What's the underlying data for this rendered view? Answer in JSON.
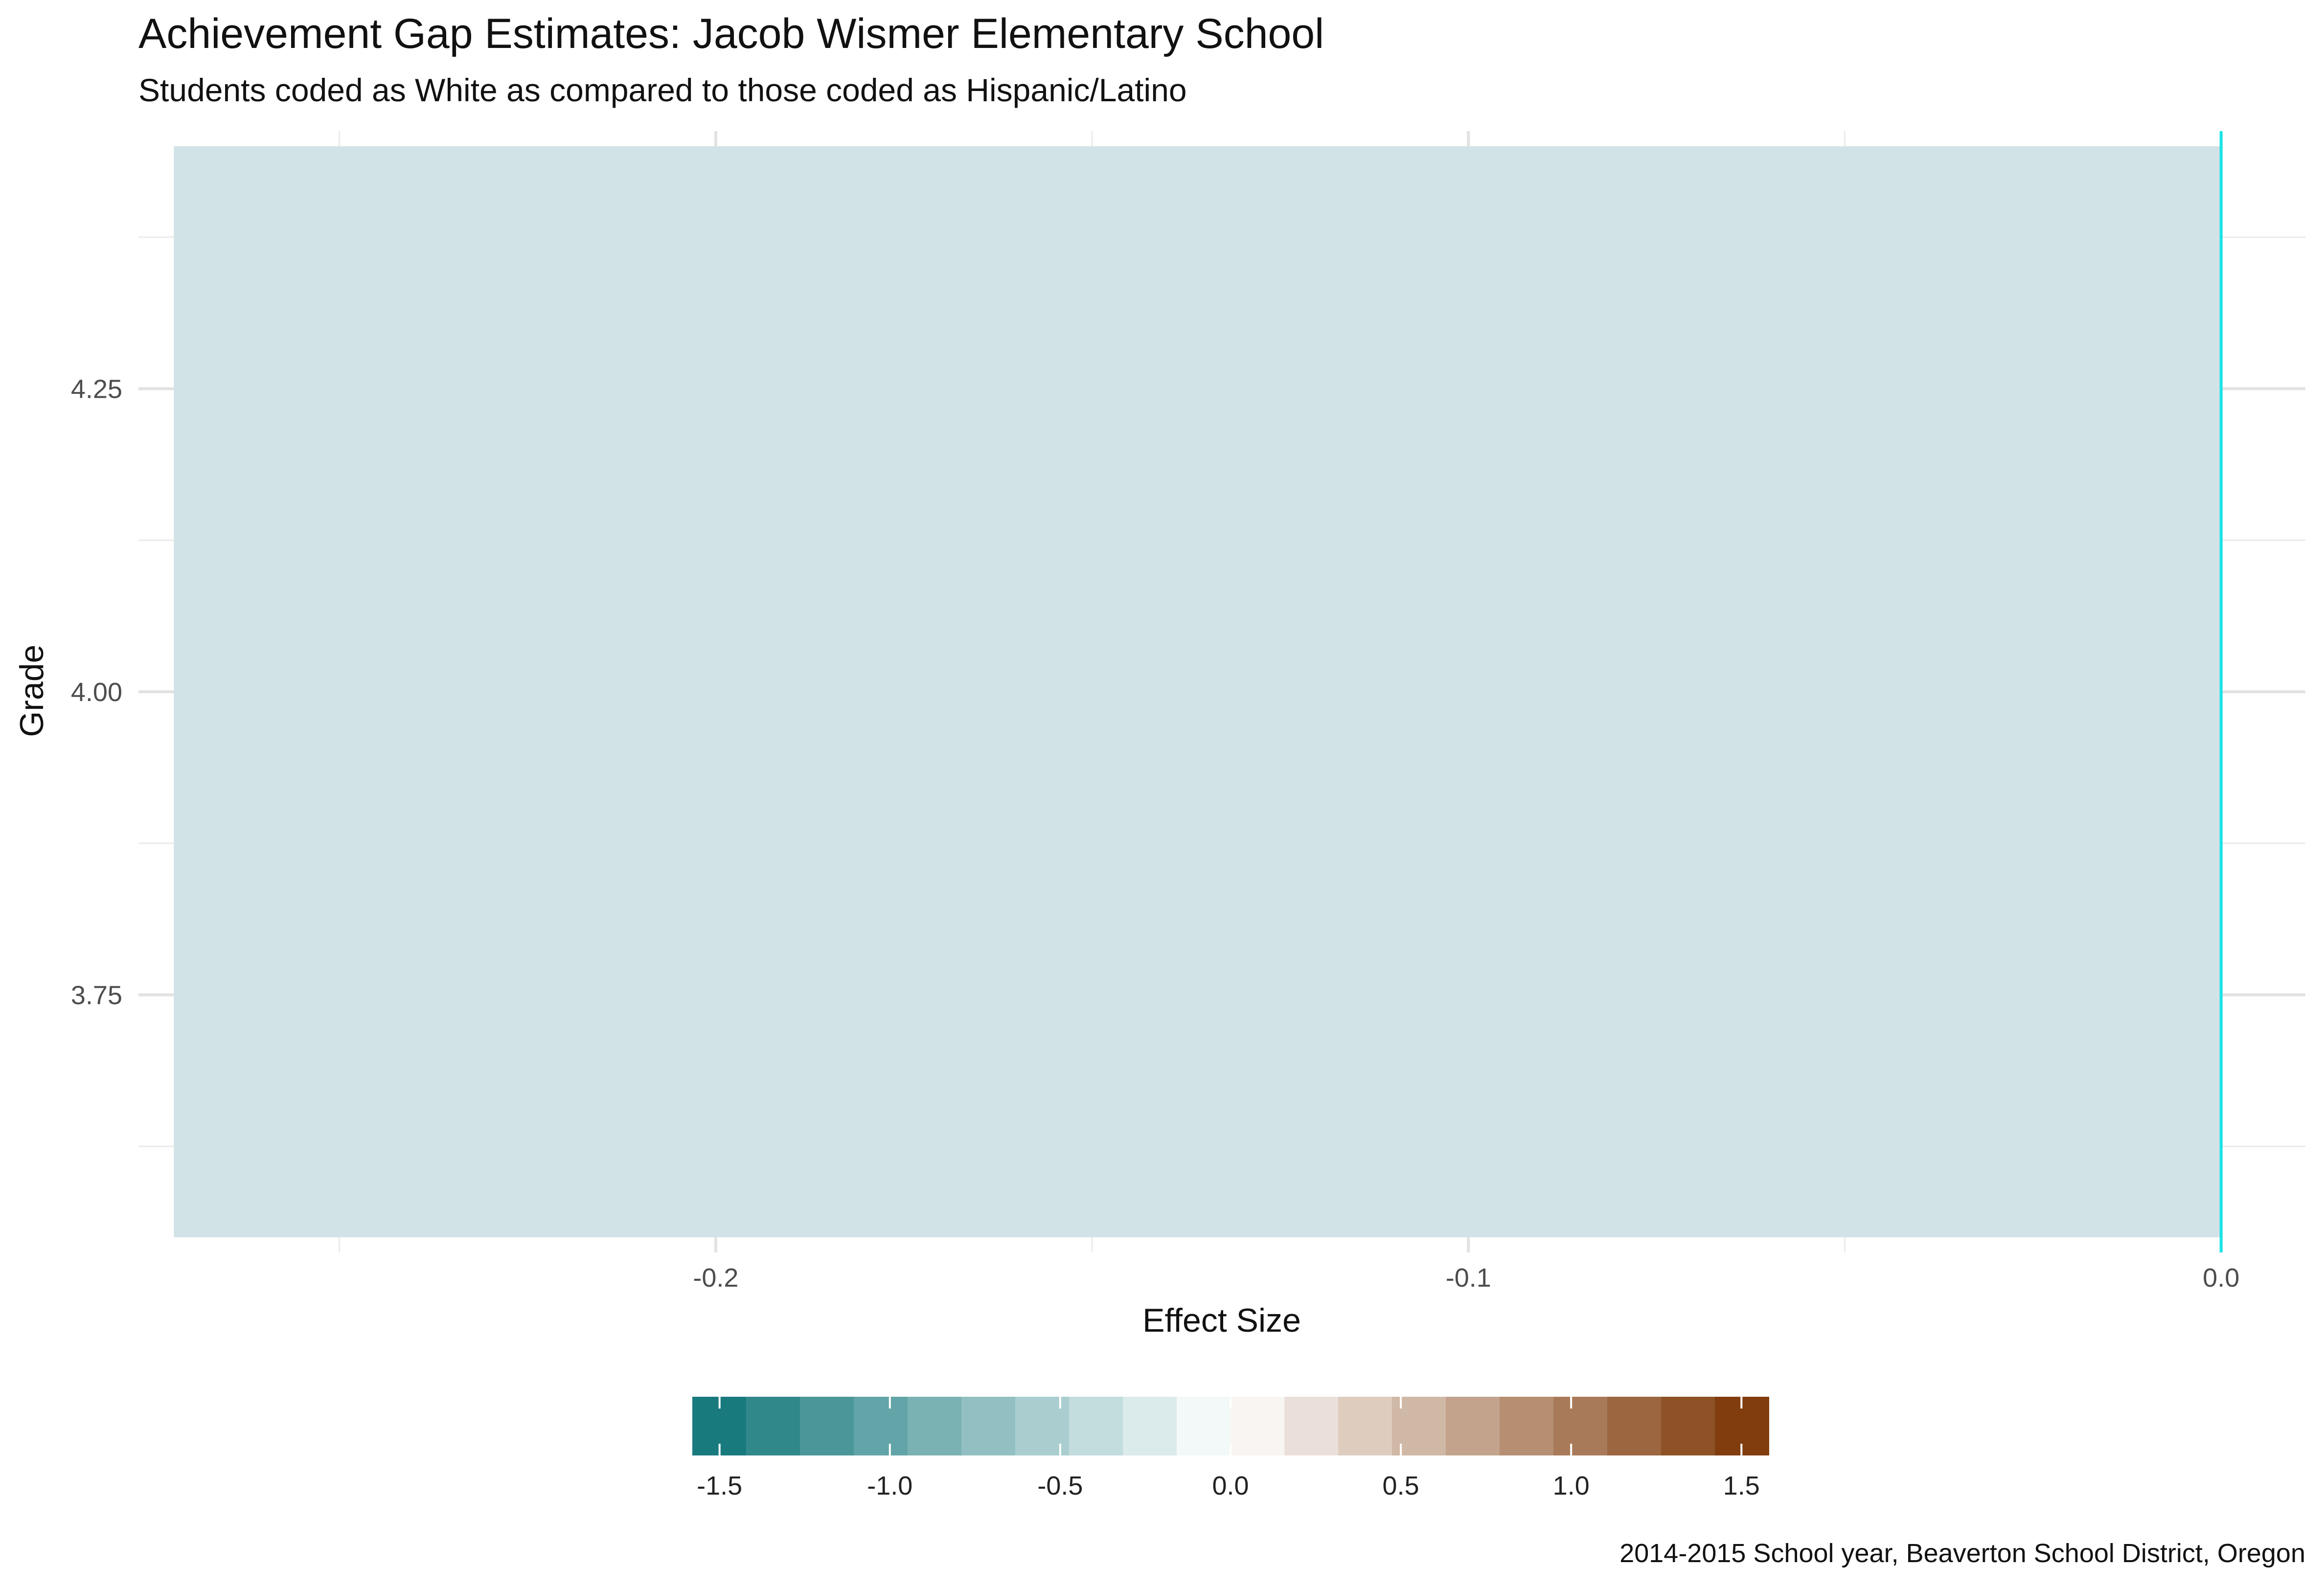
{
  "chart_data": {
    "type": "bar",
    "title": "Achievement Gap Estimates: Jacob Wismer Elementary School",
    "subtitle": "Students coded as White as compared to those coded as Hispanic/Latino",
    "caption": "2014-2015 School year, Beaverton School District, Oregon",
    "xlabel": "Effect Size",
    "ylabel": "Grade",
    "orientation": "horizontal",
    "bars": [
      {
        "grade": 4,
        "effect_size": -0.272,
        "fill": "#d2e3e7"
      }
    ],
    "reference_line": {
      "x": 0.0,
      "color": "#19e4e6"
    },
    "xlim": [
      -0.2767,
      0.0112
    ],
    "ylim": [
      3.5375,
      4.4625
    ],
    "x_ticks": [
      -0.2,
      -0.1,
      0.0
    ],
    "x_tick_labels": [
      "-0.2",
      "-0.1",
      "0.0"
    ],
    "x_minor_ticks": [
      -0.25,
      -0.15,
      -0.05
    ],
    "y_ticks": [
      3.75,
      4.0,
      4.25
    ],
    "y_tick_labels": [
      "3.75",
      "4.00",
      "4.25"
    ],
    "y_minor_ticks": [
      3.625,
      3.875,
      4.125,
      4.375
    ],
    "grid": true,
    "legend": {
      "position": "bottom",
      "type": "colorbar",
      "range": [
        -1.58,
        1.58
      ],
      "ticks": [
        -1.5,
        -1.0,
        -0.5,
        0.0,
        0.5,
        1.0,
        1.5
      ],
      "tick_labels": [
        "-1.5",
        "-1.0",
        "-0.5",
        "0.0",
        "0.5",
        "1.0",
        "1.5"
      ],
      "colors": [
        "#0d7377",
        "#ffffff",
        "#7a3300"
      ]
    }
  }
}
